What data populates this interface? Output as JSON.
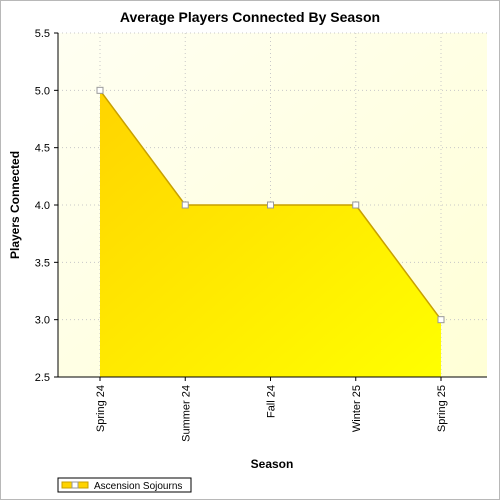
{
  "chart_data": {
    "type": "area",
    "title": "Average Players Connected By Season",
    "xlabel": "Season",
    "ylabel": "Players Connected",
    "categories": [
      "Spring 24",
      "Summer 24",
      "Fall 24",
      "Winter 25",
      "Spring 25"
    ],
    "series": [
      {
        "name": "Ascension Sojourns",
        "values": [
          5.0,
          4.0,
          4.0,
          4.0,
          3.0
        ]
      }
    ],
    "ylim": [
      2.5,
      5.5
    ],
    "yticks": [
      "2.5",
      "3.0",
      "3.5",
      "4.0",
      "4.5",
      "5.0",
      "5.5"
    ],
    "grid": true,
    "legend_position": "bottom-left",
    "colors": {
      "fill_start": "#ffd500",
      "fill_end": "#ffff00",
      "line": "#c8a000",
      "plot_bg_start": "#fffff0",
      "plot_bg_end": "#ffffd8"
    }
  }
}
